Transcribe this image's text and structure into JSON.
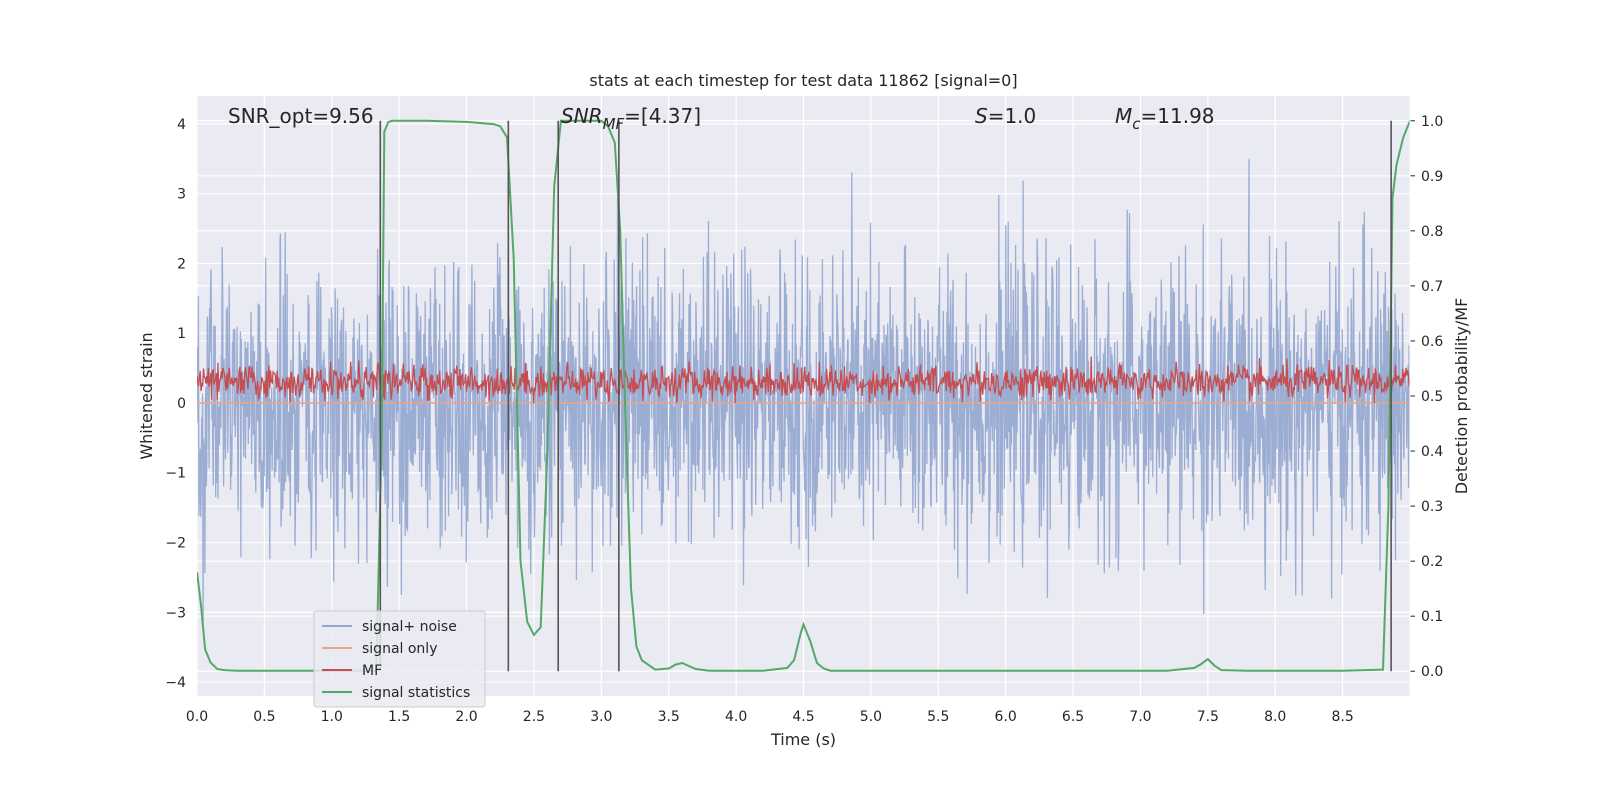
{
  "chart_data": {
    "type": "line",
    "title": "stats at each timestep for test data 11862 [signal=0]",
    "xlabel": "Time (s)",
    "ylabel": "Whitened strain",
    "y2label": "Detection probability/MF",
    "xlim": [
      0.0,
      9.0
    ],
    "ylim": [
      -4.2,
      4.4
    ],
    "y2lim": [
      -0.045,
      1.045
    ],
    "xticks": [
      "0.0",
      "0.5",
      "1.0",
      "1.5",
      "2.0",
      "2.5",
      "3.0",
      "3.5",
      "4.0",
      "4.5",
      "5.0",
      "5.5",
      "6.0",
      "6.5",
      "7.0",
      "7.5",
      "8.0",
      "8.5"
    ],
    "yticks": [
      "4",
      "3",
      "2",
      "1",
      "0",
      "−1",
      "−2",
      "−3",
      "−4"
    ],
    "y2ticks": [
      "1.0",
      "0.9",
      "0.8",
      "0.7",
      "0.6",
      "0.5",
      "0.4",
      "0.3",
      "0.2",
      "0.1",
      "0.0"
    ],
    "grid": true,
    "legend_position": "lower-left",
    "annotations": [
      {
        "pre": "SNR_opt=9.56",
        "sub": "",
        "post": ""
      },
      {
        "pre": "SNR",
        "sub": "MF",
        "post": "=[4.37]"
      },
      {
        "pre": "S",
        "sub": "",
        "post": "=1.0"
      },
      {
        "pre": "M",
        "sub": "c",
        "post": "=11.98"
      }
    ],
    "vertical_lines_x": [
      1.36,
      2.31,
      2.68,
      3.13,
      8.86
    ],
    "series": [
      {
        "name": "signal+ noise",
        "color": "#92a6cf",
        "amplitude_range": [
          -3.6,
          3.5
        ],
        "mean": 0.0,
        "std": 1.0
      },
      {
        "name": "signal only",
        "color": "#e8a589",
        "values_constant": 0.0
      },
      {
        "name": "MF",
        "color": "#c44e52",
        "amplitude_range": [
          0.0,
          0.95
        ],
        "mean": 0.3,
        "std": 0.12
      },
      {
        "name": "signal statistics",
        "color": "#55a868",
        "axis": "right",
        "x": [
          0.0,
          0.03,
          0.06,
          0.1,
          0.15,
          0.2,
          0.3,
          0.5,
          0.8,
          1.0,
          1.2,
          1.33,
          1.37,
          1.39,
          1.42,
          1.45,
          1.5,
          1.7,
          2.0,
          2.1,
          2.2,
          2.25,
          2.3,
          2.35,
          2.4,
          2.45,
          2.5,
          2.55,
          2.6,
          2.65,
          2.7,
          2.75,
          2.8,
          2.9,
          3.0,
          3.05,
          3.1,
          3.14,
          3.18,
          3.22,
          3.26,
          3.3,
          3.4,
          3.5,
          3.55,
          3.6,
          3.7,
          3.8,
          4.0,
          4.2,
          4.38,
          4.43,
          4.48,
          4.5,
          4.55,
          4.6,
          4.65,
          4.7,
          4.8,
          5.0,
          5.5,
          6.0,
          6.5,
          7.0,
          7.2,
          7.4,
          7.45,
          7.5,
          7.55,
          7.6,
          7.8,
          8.0,
          8.5,
          8.8,
          8.84,
          8.87,
          8.9,
          8.95,
          9.0
        ],
        "y": [
          0.18,
          0.12,
          0.04,
          0.016,
          0.004,
          0.002,
          0.001,
          0.001,
          0.001,
          0.001,
          0.001,
          0.001,
          0.42,
          0.98,
          0.998,
          1.0,
          1.0,
          1.0,
          0.998,
          0.996,
          0.994,
          0.99,
          0.97,
          0.75,
          0.2,
          0.09,
          0.066,
          0.08,
          0.4,
          0.88,
          1.0,
          1.0,
          1.0,
          1.0,
          1.0,
          0.99,
          0.96,
          0.8,
          0.45,
          0.15,
          0.045,
          0.02,
          0.003,
          0.005,
          0.012,
          0.015,
          0.004,
          0.001,
          0.001,
          0.001,
          0.006,
          0.02,
          0.07,
          0.085,
          0.055,
          0.015,
          0.005,
          0.001,
          0.001,
          0.001,
          0.001,
          0.001,
          0.001,
          0.001,
          0.001,
          0.006,
          0.013,
          0.022,
          0.01,
          0.002,
          0.001,
          0.001,
          0.001,
          0.003,
          0.3,
          0.86,
          0.92,
          0.97,
          1.0
        ]
      }
    ]
  }
}
